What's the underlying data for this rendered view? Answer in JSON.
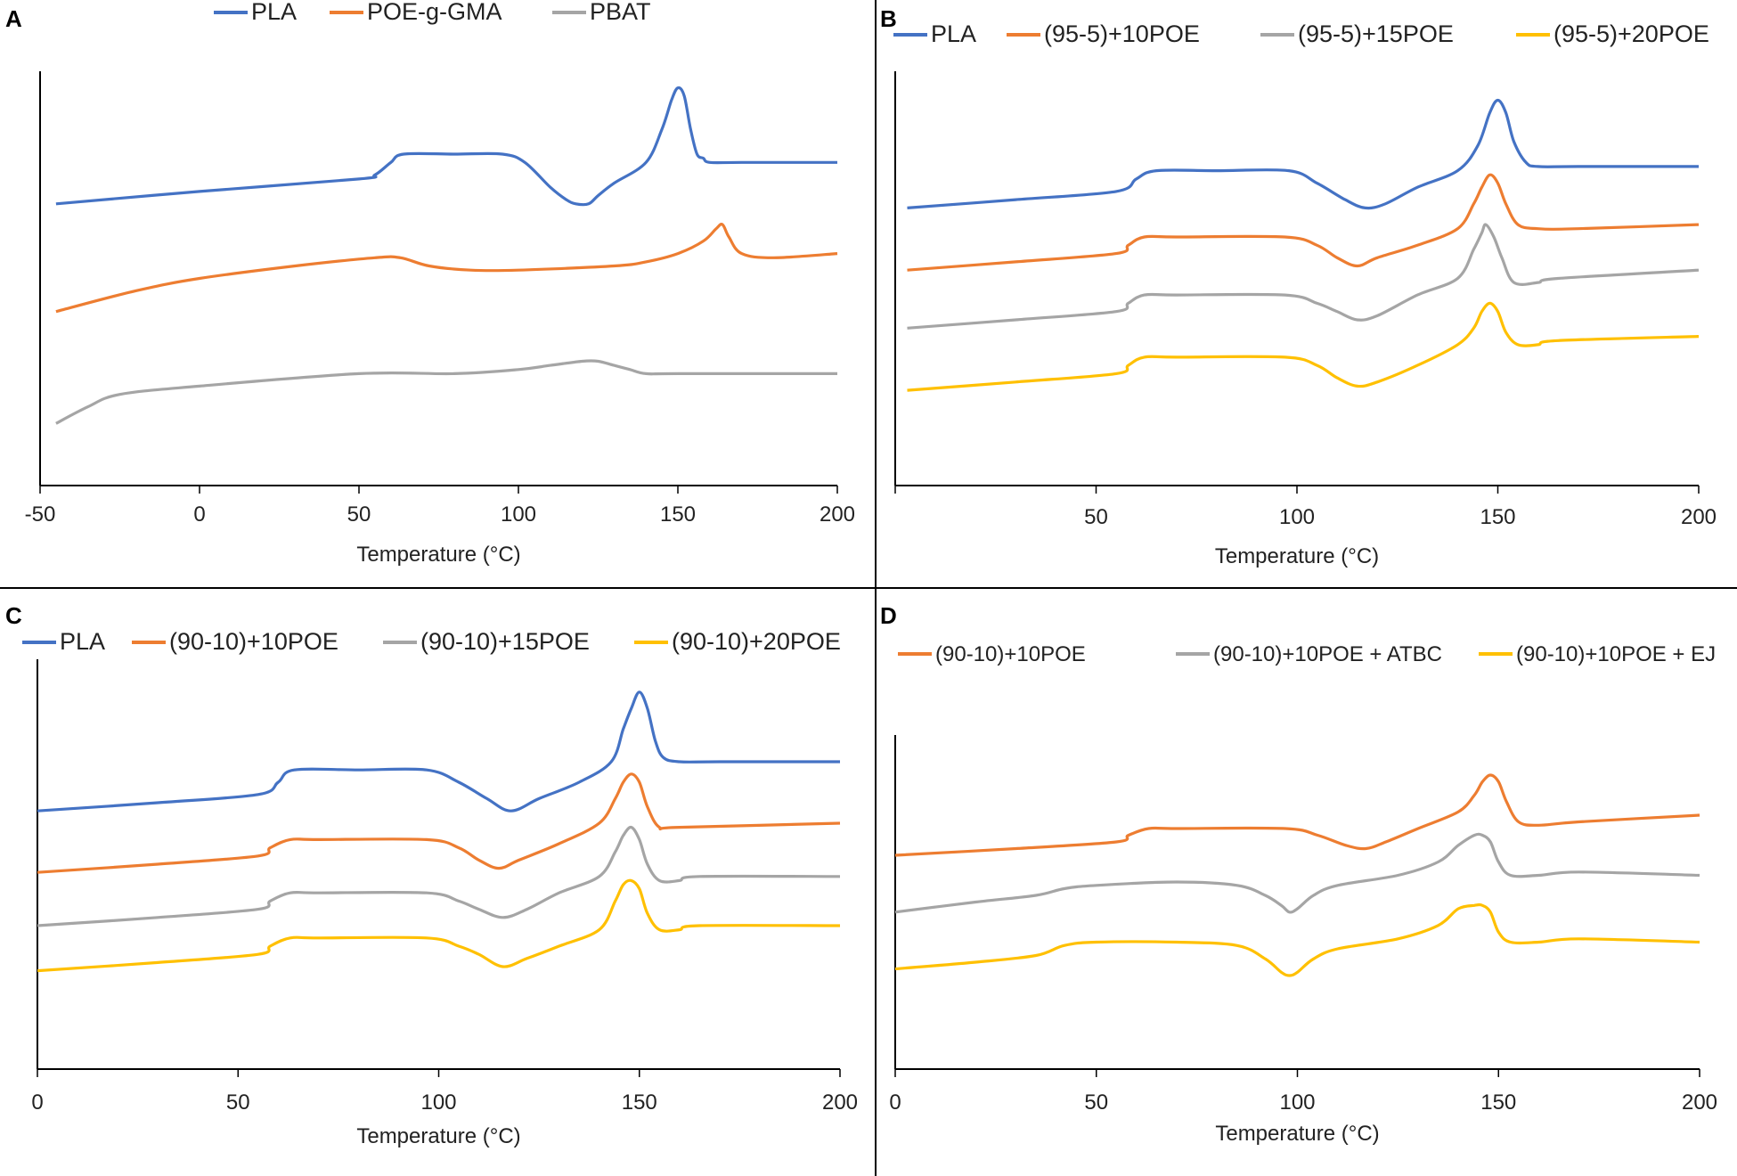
{
  "figure": {
    "colors": {
      "PLA": "#4472c4",
      "orange": "#ed7d31",
      "gray": "#a5a5a5",
      "yellow": "#ffc000",
      "axis": "#000000"
    }
  },
  "chart_data": [
    {
      "panel": "A",
      "type": "line",
      "xlabel": "Temperature (°C)",
      "ylabel": "",
      "xlim": [
        -50,
        200
      ],
      "ylim": [
        0,
        10
      ],
      "xticks": [
        "-50",
        "0",
        "50",
        "100",
        "150",
        "200"
      ],
      "legend": [
        "PLA",
        "POE-g-GMA",
        "PBAT"
      ],
      "series": [
        {
          "name": "PLA",
          "color": "#4472c4",
          "x": [
            -45,
            0,
            50,
            55,
            60,
            64,
            80,
            95,
            102,
            110,
            115,
            118,
            122,
            125,
            130,
            140,
            145,
            148,
            150,
            152,
            154,
            156,
            158,
            160,
            170,
            200
          ],
          "y": [
            6.8,
            7.1,
            7.4,
            7.5,
            7.8,
            8.0,
            8.0,
            8.0,
            7.8,
            7.2,
            6.9,
            6.8,
            6.8,
            7.0,
            7.3,
            7.8,
            8.6,
            9.3,
            9.6,
            9.4,
            8.6,
            8.0,
            7.9,
            7.8,
            7.8,
            7.8
          ]
        },
        {
          "name": "POE-g-GMA",
          "color": "#ed7d31",
          "x": [
            -45,
            -20,
            0,
            30,
            55,
            63,
            72,
            85,
            100,
            130,
            140,
            150,
            158,
            162,
            164,
            166,
            170,
            180,
            200
          ],
          "y": [
            4.2,
            4.7,
            5.0,
            5.3,
            5.5,
            5.5,
            5.3,
            5.2,
            5.2,
            5.3,
            5.4,
            5.6,
            5.9,
            6.2,
            6.3,
            6.0,
            5.6,
            5.5,
            5.6
          ]
        },
        {
          "name": "PBAT",
          "color": "#a5a5a5",
          "x": [
            -45,
            -35,
            -25,
            0,
            50,
            80,
            100,
            110,
            120,
            125,
            130,
            135,
            140,
            150,
            200
          ],
          "y": [
            1.5,
            1.9,
            2.2,
            2.4,
            2.7,
            2.7,
            2.8,
            2.9,
            3.0,
            3.0,
            2.9,
            2.8,
            2.7,
            2.7,
            2.7
          ]
        }
      ]
    },
    {
      "panel": "B",
      "type": "line",
      "xlabel": "Temperature (°C)",
      "ylabel": "",
      "xlim": [
        0,
        200
      ],
      "ylim": [
        0,
        10
      ],
      "xticks": [
        "50",
        "100",
        "150",
        "200"
      ],
      "legend": [
        "PLA",
        "(95-5)+10POE",
        "(95-5)+15POE",
        "(95-5)+20POE"
      ],
      "series": [
        {
          "name": "PLA",
          "color": "#4472c4",
          "x": [
            3,
            30,
            55,
            60,
            65,
            80,
            98,
            105,
            112,
            117,
            122,
            130,
            140,
            145,
            148,
            150,
            152,
            154,
            157,
            160,
            170,
            200
          ],
          "y": [
            6.7,
            6.9,
            7.1,
            7.4,
            7.6,
            7.6,
            7.6,
            7.3,
            6.9,
            6.7,
            6.8,
            7.2,
            7.6,
            8.2,
            9.0,
            9.3,
            9.0,
            8.3,
            7.8,
            7.7,
            7.7,
            7.7
          ]
        },
        {
          "name": "(95-5)+10POE",
          "color": "#ed7d31",
          "x": [
            3,
            30,
            55,
            58,
            62,
            70,
            97,
            105,
            110,
            115,
            120,
            130,
            140,
            144,
            146,
            148,
            150,
            152,
            155,
            160,
            170,
            200
          ],
          "y": [
            5.2,
            5.4,
            5.6,
            5.8,
            6.0,
            6.0,
            6.0,
            5.8,
            5.5,
            5.3,
            5.5,
            5.8,
            6.2,
            6.8,
            7.2,
            7.5,
            7.3,
            6.8,
            6.3,
            6.2,
            6.2,
            6.3
          ]
        },
        {
          "name": "(95-5)+15POE",
          "color": "#a5a5a5",
          "x": [
            3,
            30,
            55,
            58,
            62,
            70,
            97,
            105,
            110,
            115,
            120,
            130,
            140,
            144,
            146,
            147,
            149,
            151,
            154,
            160,
            165,
            200
          ],
          "y": [
            3.8,
            4.0,
            4.2,
            4.4,
            4.6,
            4.6,
            4.6,
            4.4,
            4.2,
            4.0,
            4.1,
            4.6,
            5.0,
            5.7,
            6.1,
            6.3,
            6.0,
            5.5,
            4.9,
            4.9,
            5.0,
            5.2
          ]
        },
        {
          "name": "(95-5)+20POE",
          "color": "#ffc000",
          "x": [
            3,
            30,
            55,
            58,
            62,
            70,
            97,
            105,
            110,
            115,
            120,
            130,
            140,
            144,
            146,
            148,
            150,
            152,
            155,
            160,
            165,
            200
          ],
          "y": [
            2.3,
            2.5,
            2.7,
            2.9,
            3.1,
            3.1,
            3.1,
            2.9,
            2.6,
            2.4,
            2.5,
            2.9,
            3.4,
            3.8,
            4.2,
            4.4,
            4.2,
            3.7,
            3.4,
            3.4,
            3.5,
            3.6
          ]
        }
      ]
    },
    {
      "panel": "C",
      "type": "line",
      "xlabel": "Temperature (°C)",
      "ylabel": "",
      "xlim": [
        0,
        200
      ],
      "ylim": [
        0,
        10
      ],
      "xticks": [
        "0",
        "50",
        "100",
        "150",
        "200"
      ],
      "legend": [
        "PLA",
        "(90-10)+10POE",
        "(90-10)+15POE",
        "(90-10)+20POE"
      ],
      "series": [
        {
          "name": "PLA",
          "color": "#4472c4",
          "x": [
            0,
            30,
            55,
            60,
            64,
            80,
            97,
            105,
            112,
            118,
            125,
            135,
            143,
            146,
            148,
            150,
            152,
            154,
            156,
            160,
            170,
            200
          ],
          "y": [
            6.3,
            6.5,
            6.7,
            7.0,
            7.3,
            7.3,
            7.3,
            7.0,
            6.6,
            6.3,
            6.6,
            7.0,
            7.5,
            8.3,
            8.8,
            9.2,
            8.8,
            8.0,
            7.6,
            7.5,
            7.5,
            7.5
          ]
        },
        {
          "name": "(90-10)+10POE",
          "color": "#ed7d31",
          "x": [
            0,
            30,
            55,
            58,
            63,
            70,
            97,
            105,
            110,
            115,
            120,
            130,
            140,
            144,
            146,
            148,
            150,
            152,
            155,
            160,
            200
          ],
          "y": [
            4.8,
            5.0,
            5.2,
            5.4,
            5.6,
            5.6,
            5.6,
            5.4,
            5.1,
            4.9,
            5.1,
            5.5,
            6.0,
            6.6,
            7.0,
            7.2,
            7.0,
            6.4,
            5.9,
            5.9,
            6.0
          ]
        },
        {
          "name": "(90-10)+15POE",
          "color": "#a5a5a5",
          "x": [
            0,
            30,
            55,
            58,
            63,
            70,
            97,
            105,
            110,
            116,
            122,
            130,
            140,
            144,
            146,
            148,
            150,
            152,
            155,
            160,
            165,
            200
          ],
          "y": [
            3.5,
            3.7,
            3.9,
            4.1,
            4.3,
            4.3,
            4.3,
            4.1,
            3.9,
            3.7,
            3.9,
            4.3,
            4.7,
            5.3,
            5.7,
            5.9,
            5.6,
            5.0,
            4.6,
            4.6,
            4.7,
            4.7
          ]
        },
        {
          "name": "(90-10)+20POE",
          "color": "#ffc000",
          "x": [
            0,
            30,
            55,
            58,
            63,
            70,
            97,
            105,
            110,
            116,
            122,
            130,
            140,
            144,
            146,
            148,
            150,
            152,
            155,
            160,
            165,
            200
          ],
          "y": [
            2.4,
            2.6,
            2.8,
            3.0,
            3.2,
            3.2,
            3.2,
            3.0,
            2.8,
            2.5,
            2.7,
            3.0,
            3.4,
            4.1,
            4.5,
            4.6,
            4.4,
            3.8,
            3.4,
            3.4,
            3.5,
            3.5
          ]
        }
      ]
    },
    {
      "panel": "D",
      "type": "line",
      "xlabel": "Temperature (°C)",
      "ylabel": "",
      "xlim": [
        0,
        200
      ],
      "ylim": [
        0,
        10
      ],
      "xticks": [
        "0",
        "50",
        "100",
        "150",
        "200"
      ],
      "legend": [
        "(90-10)+10POE",
        "(90-10)+10POE + ATBC",
        "(90-10)+10POE + EJ"
      ],
      "series": [
        {
          "name": "(90-10)+10POE",
          "color": "#ed7d31",
          "x": [
            0,
            30,
            55,
            58,
            63,
            70,
            97,
            105,
            112,
            117,
            122,
            130,
            140,
            144,
            146,
            148,
            150,
            152,
            155,
            160,
            170,
            200
          ],
          "y": [
            6.4,
            6.6,
            6.8,
            7.0,
            7.2,
            7.2,
            7.2,
            7.0,
            6.7,
            6.6,
            6.8,
            7.2,
            7.7,
            8.2,
            8.6,
            8.8,
            8.6,
            8.0,
            7.4,
            7.3,
            7.4,
            7.6
          ]
        },
        {
          "name": "(90-10)+10POE + ATBC",
          "color": "#a5a5a5",
          "x": [
            0,
            20,
            35,
            42,
            50,
            70,
            85,
            92,
            96,
            98,
            100,
            104,
            110,
            125,
            135,
            140,
            144,
            146,
            148,
            150,
            153,
            160,
            170,
            200
          ],
          "y": [
            4.7,
            5.0,
            5.2,
            5.4,
            5.5,
            5.6,
            5.5,
            5.2,
            4.9,
            4.7,
            4.8,
            5.2,
            5.5,
            5.8,
            6.2,
            6.7,
            7.0,
            7.0,
            6.8,
            6.2,
            5.8,
            5.8,
            5.9,
            5.8
          ]
        },
        {
          "name": "(90-10)+10POE + EJ",
          "color": "#ffc000",
          "x": [
            0,
            20,
            35,
            42,
            50,
            70,
            85,
            92,
            96,
            98,
            100,
            104,
            110,
            125,
            135,
            140,
            144,
            146,
            148,
            150,
            153,
            160,
            170,
            200
          ],
          "y": [
            3.0,
            3.2,
            3.4,
            3.7,
            3.8,
            3.8,
            3.7,
            3.3,
            2.9,
            2.8,
            2.9,
            3.3,
            3.6,
            3.9,
            4.3,
            4.8,
            4.9,
            4.9,
            4.7,
            4.1,
            3.8,
            3.8,
            3.9,
            3.8
          ]
        }
      ]
    }
  ]
}
